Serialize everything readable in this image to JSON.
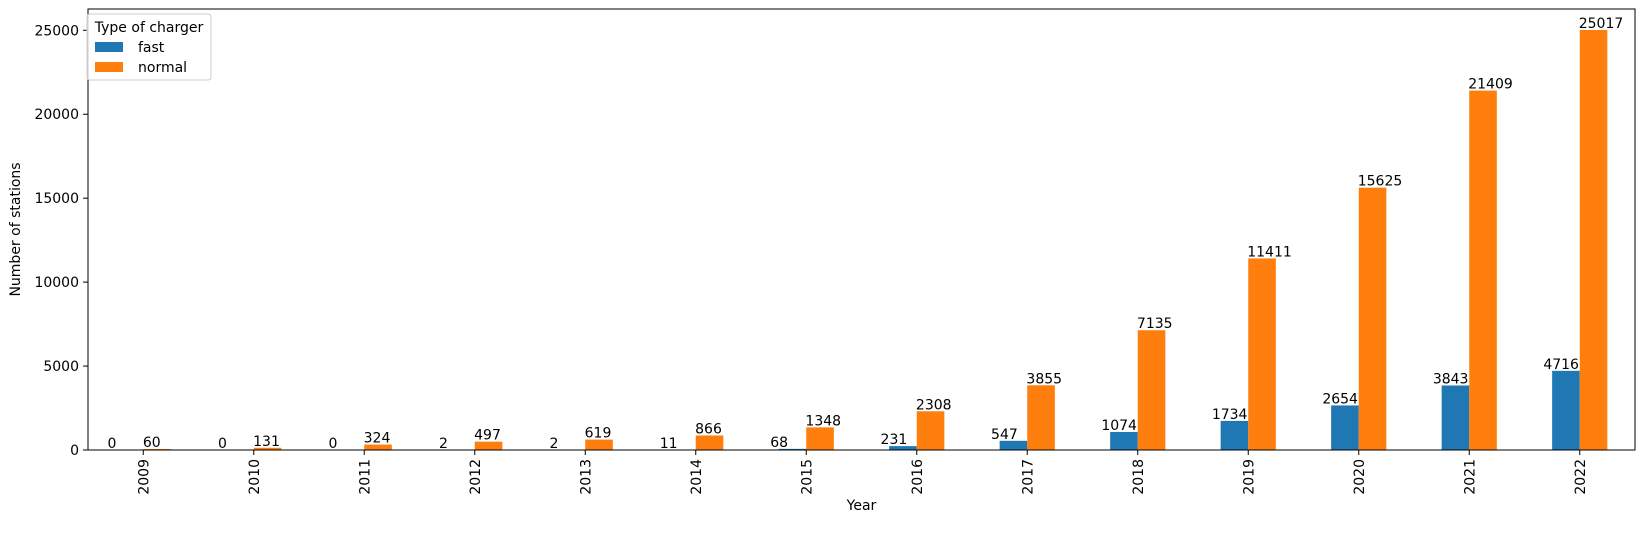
{
  "chart_data": {
    "type": "bar",
    "categories": [
      "2009",
      "2010",
      "2011",
      "2012",
      "2013",
      "2014",
      "2015",
      "2016",
      "2017",
      "2018",
      "2019",
      "2020",
      "2021",
      "2022"
    ],
    "series": [
      {
        "name": "fast",
        "color": "#1f77b4",
        "values": [
          0,
          0,
          0,
          2,
          2,
          11,
          68,
          231,
          547,
          1074,
          1734,
          2654,
          3843,
          4716
        ]
      },
      {
        "name": "normal",
        "color": "#ff7f0e",
        "values": [
          60,
          131,
          324,
          497,
          619,
          866,
          1348,
          2308,
          3855,
          7135,
          11411,
          15625,
          21409,
          25017
        ]
      }
    ],
    "xlabel": "Year",
    "ylabel": "Number of stations",
    "ylim": [
      0,
      26268
    ],
    "yticks": [
      0,
      5000,
      10000,
      15000,
      20000,
      25000
    ],
    "legend": {
      "title": "Type of charger",
      "placement": "top-left"
    },
    "grid": false
  }
}
